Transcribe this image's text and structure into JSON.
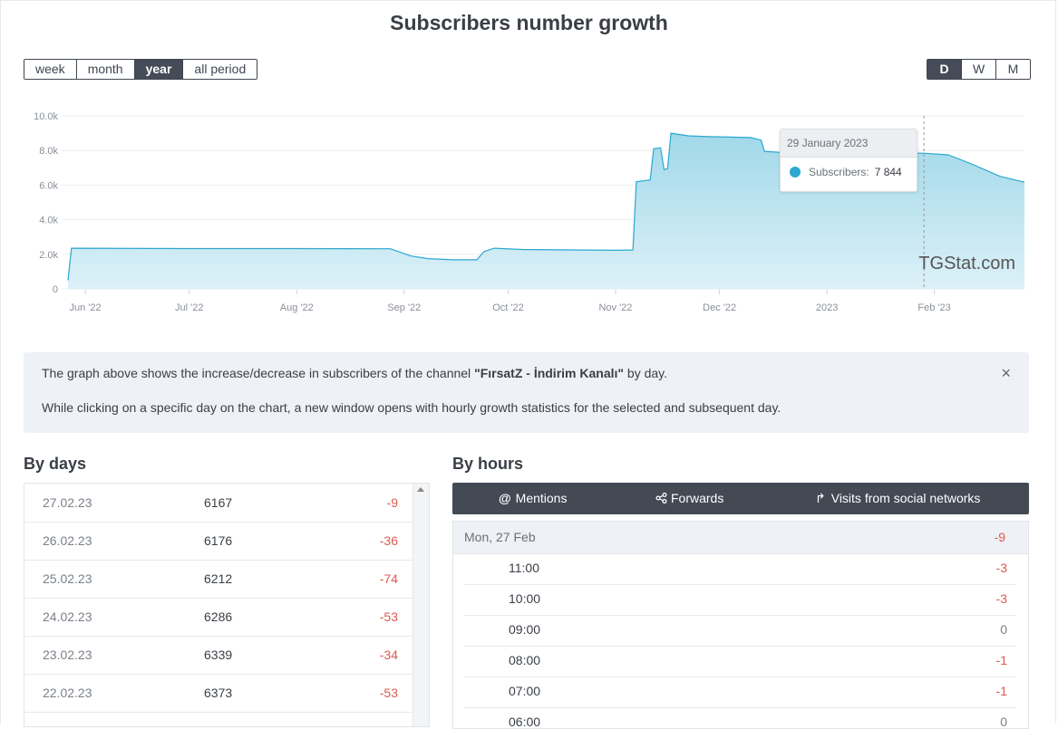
{
  "title": "Subscribers number growth",
  "period_buttons": [
    {
      "label": "week",
      "active": false
    },
    {
      "label": "month",
      "active": false
    },
    {
      "label": "year",
      "active": true
    },
    {
      "label": "all period",
      "active": false
    }
  ],
  "scale_buttons": [
    {
      "label": "D",
      "active": true
    },
    {
      "label": "W",
      "active": false
    },
    {
      "label": "M",
      "active": false
    }
  ],
  "chart_data": {
    "type": "area",
    "y_ticks": [
      "0",
      "2.0k",
      "4.0k",
      "6.0k",
      "8.0k",
      "10.0k"
    ],
    "ylim": [
      0,
      10000
    ],
    "x_ticks": [
      "Jun '22",
      "Jul '22",
      "Aug '22",
      "Sep '22",
      "Oct '22",
      "Nov '22",
      "Dec '22",
      "2023",
      "Feb '23"
    ],
    "x_range": [
      "2022-05-27",
      "2023-02-27"
    ],
    "grid": true,
    "color": "#2ba7d0",
    "watermark": "TGStat.com",
    "series": [
      {
        "points": [
          [
            "2022-05-27",
            500
          ],
          [
            "2022-05-28",
            2350
          ],
          [
            "2022-06-30",
            2330
          ],
          [
            "2022-07-31",
            2330
          ],
          [
            "2022-08-28",
            2320
          ],
          [
            "2022-09-03",
            1900
          ],
          [
            "2022-09-08",
            1750
          ],
          [
            "2022-09-15",
            1680
          ],
          [
            "2022-09-22",
            1680
          ],
          [
            "2022-09-24",
            2150
          ],
          [
            "2022-09-27",
            2350
          ],
          [
            "2022-10-05",
            2280
          ],
          [
            "2022-10-20",
            2250
          ],
          [
            "2022-11-01",
            2230
          ],
          [
            "2022-11-06",
            2250
          ],
          [
            "2022-11-07",
            6200
          ],
          [
            "2022-11-11",
            6300
          ],
          [
            "2022-11-12",
            8100
          ],
          [
            "2022-11-14",
            8150
          ],
          [
            "2022-11-15",
            6900
          ],
          [
            "2022-11-16",
            6950
          ],
          [
            "2022-11-17",
            9000
          ],
          [
            "2022-11-22",
            8850
          ],
          [
            "2022-11-28",
            8800
          ],
          [
            "2022-12-10",
            8750
          ],
          [
            "2022-12-13",
            8600
          ],
          [
            "2022-12-14",
            7950
          ],
          [
            "2022-12-18",
            7900
          ],
          [
            "2023-01-01",
            7860
          ],
          [
            "2023-01-15",
            7850
          ],
          [
            "2023-01-29",
            7844
          ],
          [
            "2023-02-05",
            7750
          ],
          [
            "2023-02-12",
            7200
          ],
          [
            "2023-02-20",
            6500
          ],
          [
            "2023-02-27",
            6167
          ]
        ]
      }
    ],
    "tooltip": {
      "date": "29 January 2023",
      "series_label": "Subscribers:",
      "value": "7 844"
    }
  },
  "info": {
    "line1_prefix": "The graph above shows the increase/decrease in subscribers of the channel ",
    "channel_name": "\"FırsatZ - İndirim Kanalı\"",
    "line1_suffix": " by day.",
    "line2": "While clicking on a specific day on the chart, a new window opens with hourly growth statistics for the selected and subsequent day.",
    "close_label": "×"
  },
  "by_days": {
    "title": "By days",
    "rows": [
      {
        "date": "27.02.23",
        "count": "6167",
        "change": "-9"
      },
      {
        "date": "26.02.23",
        "count": "6176",
        "change": "-36"
      },
      {
        "date": "25.02.23",
        "count": "6212",
        "change": "-74"
      },
      {
        "date": "24.02.23",
        "count": "6286",
        "change": "-53"
      },
      {
        "date": "23.02.23",
        "count": "6339",
        "change": "-34"
      },
      {
        "date": "22.02.23",
        "count": "6373",
        "change": "-53"
      }
    ]
  },
  "by_hours": {
    "title": "By hours",
    "tabs": [
      {
        "icon": "at-icon",
        "glyph": "@",
        "label": "Mentions"
      },
      {
        "icon": "share-icon",
        "glyph": "",
        "label": "Forwards"
      },
      {
        "icon": "redirect-icon",
        "glyph": "↱",
        "label": "Visits from social networks"
      }
    ],
    "day_label": "Mon, 27 Feb",
    "day_change": "-9",
    "rows": [
      {
        "hour": "11:00",
        "change": "-3"
      },
      {
        "hour": "10:00",
        "change": "-3"
      },
      {
        "hour": "09:00",
        "change": "0"
      },
      {
        "hour": "08:00",
        "change": "-1"
      },
      {
        "hour": "07:00",
        "change": "-1"
      },
      {
        "hour": "06:00",
        "change": "0"
      }
    ]
  }
}
